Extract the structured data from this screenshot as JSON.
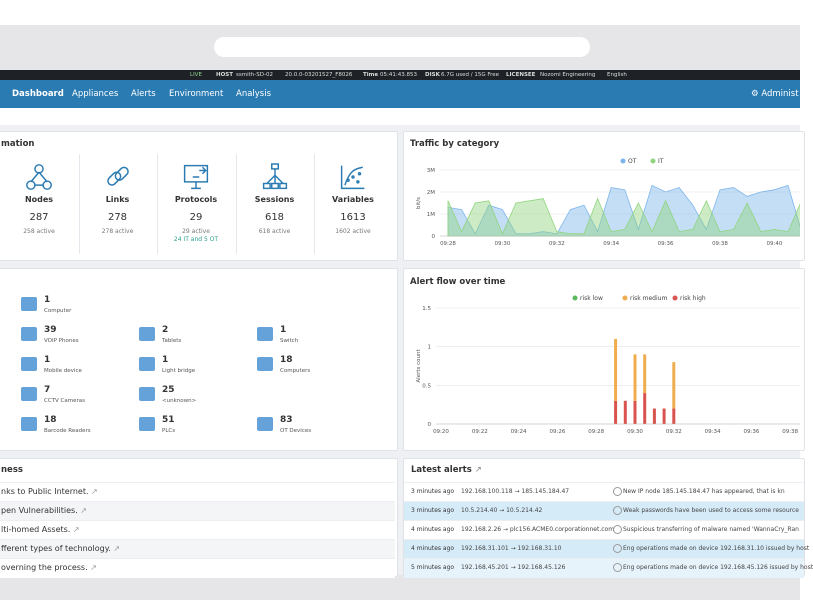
{
  "topbar": {
    "status": "LIVE",
    "host_label": "HOST",
    "host": "ssmith-SD-02",
    "version": "20.0.0-03201527_F8026",
    "time_label": "Time",
    "time": "05:41:43.853",
    "disk_label": "DISK",
    "disk": "6.7G used / 15G Free",
    "licensee_label": "LICENSEE",
    "licensee": "Nozomi Engineering",
    "language": "English"
  },
  "nav": {
    "items": [
      "Dashboard",
      "Appliances",
      "Alerts",
      "Environment",
      "Analysis"
    ],
    "user": "Administ"
  },
  "information": {
    "title": "mation",
    "cards": [
      {
        "label": "Nodes",
        "count": 287,
        "active": "258 active"
      },
      {
        "label": "Links",
        "count": 278,
        "active": "278 active"
      },
      {
        "label": "Protocols",
        "count": 29,
        "active": "29 active",
        "detail": "24 IT and 5 OT"
      },
      {
        "label": "Sessions",
        "count": 618,
        "active": "618 active"
      },
      {
        "label": "Variables",
        "count": 1613,
        "active": "1602 active"
      }
    ]
  },
  "assets": {
    "items": [
      {
        "count": 1,
        "label": "Computer"
      },
      {
        "count": 39,
        "label": "VOIP Phones"
      },
      {
        "count": 2,
        "label": "Tablets"
      },
      {
        "count": 1,
        "label": "Switch"
      },
      {
        "count": 1,
        "label": "Mobile device"
      },
      {
        "count": 1,
        "label": "Light bridge"
      },
      {
        "count": 18,
        "label": "Computers"
      },
      {
        "count": 7,
        "label": "CCTV Cameras"
      },
      {
        "count": 25,
        "label": "<unknown>"
      },
      {
        "count": 18,
        "label": "Barcode Readers"
      },
      {
        "count": 51,
        "label": "PLCs"
      },
      {
        "count": 83,
        "label": "OT Devices"
      }
    ]
  },
  "awareness": {
    "title": "ness",
    "items": [
      "nks to Public Internet.",
      "pen Vulnerabilities.",
      "lti-homed Assets.",
      "fferent types of technology.",
      "overning the process."
    ]
  },
  "traffic_chart": {
    "type": "area",
    "title": "Traffic by category",
    "ylabel": "bit/s",
    "categories": [
      "09:28",
      null,
      null,
      null,
      "09:30",
      null,
      null,
      null,
      "09:32",
      null,
      null,
      null,
      "09:34",
      null,
      null,
      null,
      "09:36",
      null,
      null,
      null,
      "09:38",
      null,
      null,
      null,
      "09:40",
      null,
      null
    ],
    "series": [
      {
        "name": "OT",
        "color": "#7cb5ec",
        "values": [
          1300000,
          1200000,
          100000,
          1400000,
          1200000,
          100000,
          100000,
          200000,
          100000,
          1200000,
          1400000,
          200000,
          2200000,
          2100000,
          300000,
          2300000,
          2000000,
          2200000,
          1400000,
          300000,
          2100000,
          2200000,
          1800000,
          2000000,
          2100000,
          2300000,
          200000
        ]
      },
      {
        "name": "IT",
        "color": "#90d47e",
        "values": [
          1600000,
          200000,
          1500000,
          1600000,
          100000,
          1500000,
          1600000,
          1700000,
          200000,
          100000,
          100000,
          1700000,
          200000,
          300000,
          1500000,
          200000,
          1600000,
          200000,
          300000,
          1600000,
          200000,
          300000,
          1500000,
          200000,
          300000,
          200000,
          1600000
        ]
      }
    ],
    "ylim": [
      0,
      3000000
    ],
    "yticks": [
      0,
      {
        "value": 1000000,
        "label": "1M"
      },
      {
        "value": 2000000,
        "label": "2M"
      },
      {
        "value": 3000000,
        "label": "3M"
      }
    ],
    "grid": true
  },
  "alert_chart": {
    "type": "stacked_bar",
    "title": "Alert flow over time",
    "ylabel": "Alerts count",
    "categories": [
      "09:20",
      null,
      null,
      null,
      "09:22",
      null,
      null,
      null,
      "09:24",
      null,
      null,
      null,
      "09:26",
      null,
      null,
      null,
      "09:28",
      null,
      null,
      null,
      "09:30",
      null,
      null,
      null,
      "09:32",
      null,
      null,
      null,
      "09:34",
      null,
      null,
      null,
      "09:36",
      null,
      null,
      null,
      "09:38",
      null,
      null
    ],
    "series": [
      {
        "name": "risk low",
        "color": "#5cb85c",
        "values": [
          0,
          0,
          0,
          0,
          0,
          0,
          0,
          0,
          0,
          0,
          0,
          0,
          0,
          0,
          0,
          0,
          0,
          0,
          0,
          0,
          0,
          0,
          0,
          0,
          0,
          0,
          0,
          0,
          0,
          0,
          0,
          0,
          0,
          0,
          0,
          0,
          0,
          0,
          0
        ]
      },
      {
        "name": "risk medium",
        "color": "#f0ad4e",
        "values": [
          0,
          0,
          0,
          0,
          0,
          0,
          0,
          0,
          0,
          0,
          0,
          0,
          0,
          0,
          0,
          0,
          0,
          0,
          0.8,
          0,
          0.6,
          0.5,
          0,
          0,
          0.6,
          0,
          0,
          0,
          0,
          0,
          0,
          0,
          0,
          0,
          0,
          0,
          0,
          0,
          0
        ]
      },
      {
        "name": "risk high",
        "color": "#d9534f",
        "values": [
          0,
          0,
          0,
          0,
          0,
          0,
          0,
          0,
          0,
          0,
          0,
          0,
          0,
          0,
          0,
          0,
          0,
          0,
          0.3,
          0.3,
          0.3,
          0.4,
          0.2,
          0.2,
          0.2,
          0,
          0,
          0,
          0,
          0,
          0,
          0,
          0,
          0,
          0,
          0,
          0,
          0,
          0
        ]
      }
    ],
    "ylim": [
      0,
      1.5
    ],
    "yticks": [
      0,
      0.5,
      1,
      1.5
    ],
    "grid": true
  },
  "latest_alerts": {
    "title": "Latest alerts",
    "rows": [
      [
        "3 minutes ago",
        "192.168.100.118 → 185.145.184.47",
        "New IP node 185.145.184.47 has appeared, that is kn"
      ],
      [
        "3 minutes ago",
        "10.5.214.40 → 10.5.214.42",
        "Weak passwords have been used to access some resource"
      ],
      [
        "4 minutes ago",
        "192.168.2.26 → plc156.ACME0.corporationnet.com",
        "Suspicious transferring of malware named 'WannaCry_Ran"
      ],
      [
        "4 minutes ago",
        "192.168.31.101 → 192.168.31.10",
        "Eng operations made on device 192.168.31.10 issued by host"
      ],
      [
        "5 minutes ago",
        "192.168.45.201 → 192.168.45.126",
        "Eng operations made on device 192.168.45.126 issued by host"
      ]
    ]
  }
}
